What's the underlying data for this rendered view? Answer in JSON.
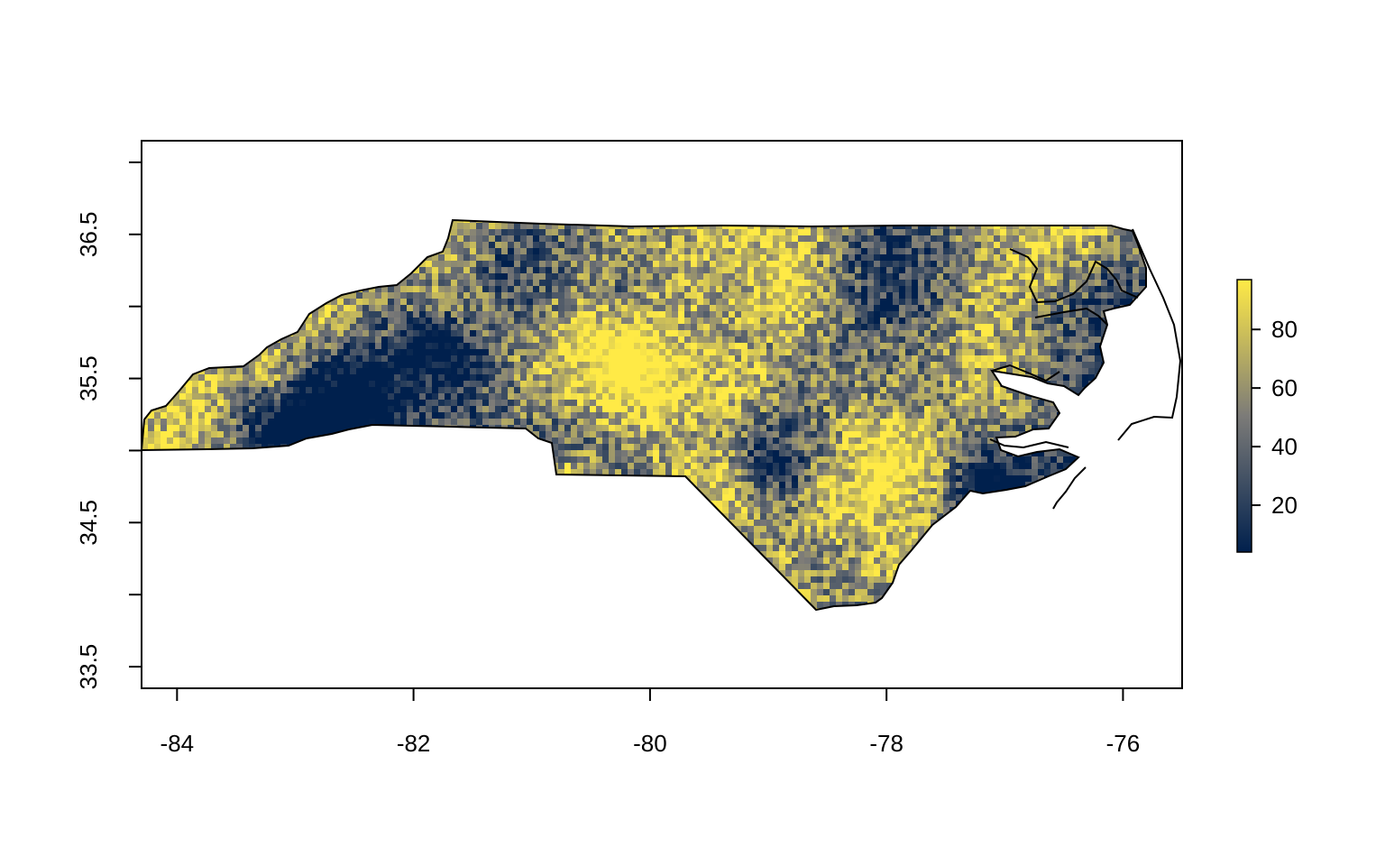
{
  "map": {
    "region": "North Carolina",
    "x_axis": {
      "range": [
        -84.3,
        -75.5
      ],
      "ticks": [
        -84,
        -82,
        -80,
        -78,
        -76
      ],
      "tick_labels": [
        "-84",
        "-82",
        "-80",
        "-78",
        "-76"
      ]
    },
    "y_axis": {
      "range": [
        33.35,
        37.15
      ],
      "ticks": [
        33.5,
        34.0,
        34.5,
        35.0,
        35.5,
        36.0,
        36.5,
        37.0
      ],
      "labeled_ticks": [
        33.5,
        34.5,
        35.5,
        36.5
      ],
      "tick_labels": [
        "33.5",
        "34.5",
        "35.5",
        "36.5"
      ]
    },
    "raster": {
      "value_min": 4,
      "value_max": 97,
      "style": "continuous raster, patchy mixture of low and high values"
    },
    "legend": {
      "type": "colorbar",
      "placement": "right",
      "range": [
        4,
        97
      ],
      "ticks": [
        20,
        40,
        60,
        80
      ],
      "tick_labels": [
        "20",
        "40",
        "60",
        "80"
      ]
    },
    "colors": {
      "palette": "cividis",
      "low": "#00204D",
      "mid": "#7C7B78",
      "high": "#FFEA46",
      "outline": "#000000",
      "background": "#FFFFFF"
    }
  }
}
